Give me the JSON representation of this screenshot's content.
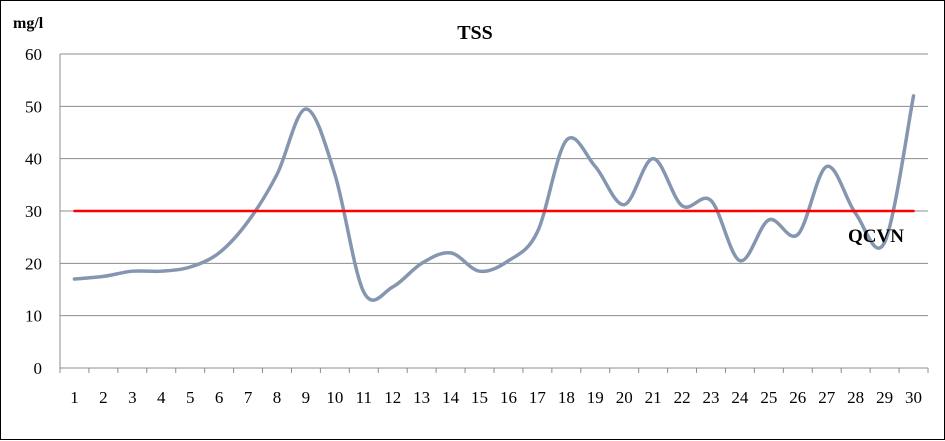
{
  "chart_data": {
    "type": "line",
    "title": "TSS",
    "ylabel": "mg/l",
    "xlabel": "",
    "x": [
      1,
      2,
      3,
      4,
      5,
      6,
      7,
      8,
      9,
      10,
      11,
      12,
      13,
      14,
      15,
      16,
      17,
      18,
      19,
      20,
      21,
      22,
      23,
      24,
      25,
      26,
      27,
      28,
      29,
      30
    ],
    "ylim": [
      0,
      60
    ],
    "yticks": [
      0,
      10,
      20,
      30,
      40,
      50,
      60
    ],
    "grid": true,
    "series": [
      {
        "values": [
          17,
          17.5,
          18.5,
          18.5,
          19.3,
          22,
          28,
          37,
          49.5,
          37,
          14.5,
          15.5,
          20,
          22,
          18.5,
          20.5,
          26,
          43.5,
          38.5,
          31.2,
          40,
          31,
          32,
          20.5,
          28.3,
          25.5,
          38.5,
          29.5,
          24,
          52
        ],
        "color": "#8496b0"
      },
      {
        "name": "QCVN",
        "values": [
          30,
          30,
          30,
          30,
          30,
          30,
          30,
          30,
          30,
          30,
          30,
          30,
          30,
          30,
          30,
          30,
          30,
          30,
          30,
          30,
          30,
          30,
          30,
          30,
          30,
          30,
          30,
          30,
          30,
          30
        ],
        "color": "#ff0000"
      }
    ]
  }
}
